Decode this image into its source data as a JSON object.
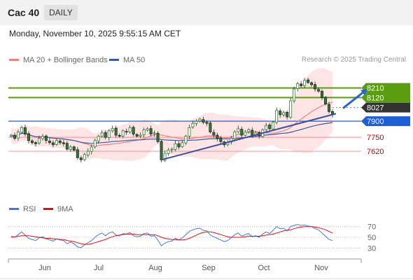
{
  "header": {
    "symbol": "Cac 40",
    "period": "DAILY"
  },
  "timestamp": "Monday, November 10, 2025 9:55:15 AM CET",
  "legend": {
    "ma20": "MA 20 + Bollinger Bands",
    "ma50": "MA 50",
    "rsi": "RSI",
    "rsi_ma": "9MA"
  },
  "credit": "Research © 2025 Trading Central",
  "colors": {
    "ma20": "#f08080",
    "ma50": "#3a5a9a",
    "band_fill": "#fde0e0",
    "candle_up": "#2f7d32",
    "candle_down": "#b22222",
    "resistance": "#5a9e10",
    "support": "#1e5fd6",
    "pivot": "#333333",
    "support_lower": "#f0a0a0",
    "rsi": "#4a74d8",
    "rsi_ma": "#e01010"
  },
  "chart_data": {
    "type": "candlestick",
    "x_ticks": [
      "Jun",
      "Jul",
      "Aug",
      "Sep",
      "Oct",
      "Nov"
    ],
    "ylim": [
      7190,
      8390
    ],
    "levels": [
      {
        "label": "8210",
        "value": 8210,
        "kind": "resistance"
      },
      {
        "label": "8120",
        "value": 8120,
        "kind": "resistance"
      },
      {
        "label": "8027",
        "value": 8027,
        "kind": "pivot"
      },
      {
        "label": "7900",
        "value": 7900,
        "kind": "support"
      },
      {
        "label": "7750",
        "value": 7750,
        "kind": "support_lower"
      },
      {
        "label": "7620",
        "value": 7620,
        "kind": "support_lower"
      }
    ],
    "close": [
      7770,
      7740,
      7800,
      7840,
      7780,
      7720,
      7700,
      7690,
      7740,
      7760,
      7720,
      7700,
      7680,
      7720,
      7700,
      7690,
      7640,
      7660,
      7630,
      7560,
      7540,
      7590,
      7620,
      7660,
      7720,
      7760,
      7790,
      7750,
      7810,
      7830,
      7770,
      7760,
      7810,
      7800,
      7840,
      7780,
      7760,
      7770,
      7820,
      7830,
      7780,
      7790,
      7710,
      7540,
      7600,
      7630,
      7640,
      7690,
      7660,
      7700,
      7760,
      7840,
      7880,
      7900,
      7920,
      7890,
      7880,
      7800,
      7770,
      7740,
      7710,
      7680,
      7700,
      7740,
      7800,
      7830,
      7770,
      7800,
      7820,
      7770,
      7790,
      7760,
      7820,
      7860,
      7830,
      7890,
      8000,
      7960,
      7980,
      7940,
      8090,
      8200,
      8250,
      8230,
      8280,
      8260,
      8240,
      8200,
      8180,
      8120,
      8060,
      7990,
      7960
    ],
    "trendline": [
      [
        43,
        7540
      ],
      [
        93,
        7970
      ]
    ],
    "arrow": [
      [
        95,
        8020
      ],
      [
        102,
        8200
      ]
    ],
    "rsi": {
      "ylim": [
        20,
        80
      ],
      "levels": [
        70,
        50,
        30
      ],
      "values": [
        52,
        50,
        55,
        60,
        54,
        48,
        46,
        44,
        49,
        51,
        47,
        45,
        43,
        47,
        45,
        44,
        38,
        41,
        38,
        32,
        31,
        36,
        40,
        44,
        50,
        55,
        58,
        53,
        58,
        60,
        54,
        53,
        57,
        56,
        59,
        53,
        51,
        52,
        57,
        58,
        52,
        53,
        45,
        34,
        39,
        42,
        43,
        48,
        45,
        49,
        55,
        61,
        64,
        66,
        67,
        63,
        62,
        54,
        51,
        48,
        45,
        42,
        44,
        49,
        55,
        58,
        52,
        55,
        57,
        51,
        53,
        50,
        56,
        60,
        57,
        63,
        70,
        66,
        67,
        62,
        70,
        72,
        74,
        72,
        73,
        71,
        70,
        66,
        64,
        58,
        52,
        46,
        44
      ],
      "ma": [
        50,
        51,
        52,
        53,
        53,
        53,
        52,
        51,
        50,
        49,
        48,
        48,
        47,
        47,
        46,
        46,
        44,
        43,
        42,
        40,
        38,
        37,
        37,
        38,
        40,
        42,
        44,
        46,
        49,
        51,
        53,
        54,
        55,
        56,
        56,
        56,
        55,
        55,
        55,
        55,
        55,
        55,
        53,
        50,
        48,
        47,
        46,
        46,
        45,
        45,
        46,
        48,
        51,
        54,
        57,
        59,
        60,
        60,
        59,
        57,
        55,
        53,
        51,
        50,
        50,
        50,
        50,
        51,
        52,
        52,
        52,
        52,
        53,
        54,
        55,
        56,
        58,
        60,
        62,
        63,
        64,
        66,
        68,
        69,
        70,
        70,
        70,
        69,
        68,
        66,
        64,
        61,
        58
      ]
    }
  }
}
